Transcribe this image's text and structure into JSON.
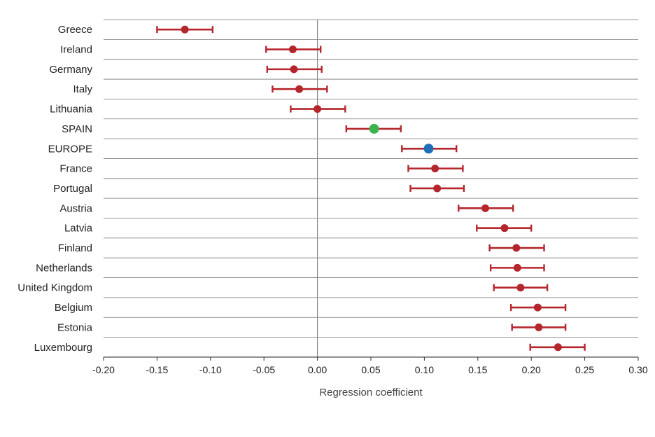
{
  "chart_data": {
    "type": "scatter",
    "orientation": "horizontal",
    "title": "",
    "xlabel": "Regression coefficient",
    "ylabel": "",
    "xlim": [
      -0.2,
      0.3
    ],
    "xticks": [
      -0.2,
      -0.15,
      -0.1,
      -0.05,
      0.0,
      0.05,
      0.1,
      0.15,
      0.2,
      0.25,
      0.3
    ],
    "xtick_labels": [
      "-0.20",
      "-0.15",
      "-0.10",
      "-0.05",
      "0.00",
      "0.05",
      "0.10",
      "0.15",
      "0.20",
      "0.25",
      "0.30"
    ],
    "grid": "horizontal",
    "legend": "none",
    "colors": {
      "default": "#b5262c",
      "spain": "#3cb44b",
      "europe": "#1f6fb8",
      "grid": "#777777"
    },
    "points": [
      {
        "label": "Greece",
        "value": -0.124,
        "low": -0.15,
        "high": -0.098,
        "color": "default"
      },
      {
        "label": "Ireland",
        "value": -0.023,
        "low": -0.048,
        "high": 0.003,
        "color": "default"
      },
      {
        "label": "Germany",
        "value": -0.022,
        "low": -0.047,
        "high": 0.004,
        "color": "default"
      },
      {
        "label": "Italy",
        "value": -0.017,
        "low": -0.042,
        "high": 0.009,
        "color": "default"
      },
      {
        "label": "Lithuania",
        "value": 0.0,
        "low": -0.025,
        "high": 0.026,
        "color": "default"
      },
      {
        "label": "SPAIN",
        "value": 0.053,
        "low": 0.027,
        "high": 0.078,
        "color": "spain"
      },
      {
        "label": "EUROPE",
        "value": 0.104,
        "low": 0.079,
        "high": 0.13,
        "color": "europe"
      },
      {
        "label": "France",
        "value": 0.11,
        "low": 0.085,
        "high": 0.136,
        "color": "default"
      },
      {
        "label": "Portugal",
        "value": 0.112,
        "low": 0.087,
        "high": 0.137,
        "color": "default"
      },
      {
        "label": "Austria",
        "value": 0.157,
        "low": 0.132,
        "high": 0.183,
        "color": "default"
      },
      {
        "label": "Latvia",
        "value": 0.175,
        "low": 0.149,
        "high": 0.2,
        "color": "default"
      },
      {
        "label": "Finland",
        "value": 0.186,
        "low": 0.161,
        "high": 0.212,
        "color": "default"
      },
      {
        "label": "Netherlands",
        "value": 0.187,
        "low": 0.162,
        "high": 0.212,
        "color": "default"
      },
      {
        "label": "United Kingdom",
        "value": 0.19,
        "low": 0.165,
        "high": 0.215,
        "color": "default"
      },
      {
        "label": "Belgium",
        "value": 0.206,
        "low": 0.181,
        "high": 0.232,
        "color": "default"
      },
      {
        "label": "Estonia",
        "value": 0.207,
        "low": 0.182,
        "high": 0.232,
        "color": "default"
      },
      {
        "label": "Luxembourg",
        "value": 0.225,
        "low": 0.199,
        "high": 0.25,
        "color": "default"
      }
    ]
  }
}
